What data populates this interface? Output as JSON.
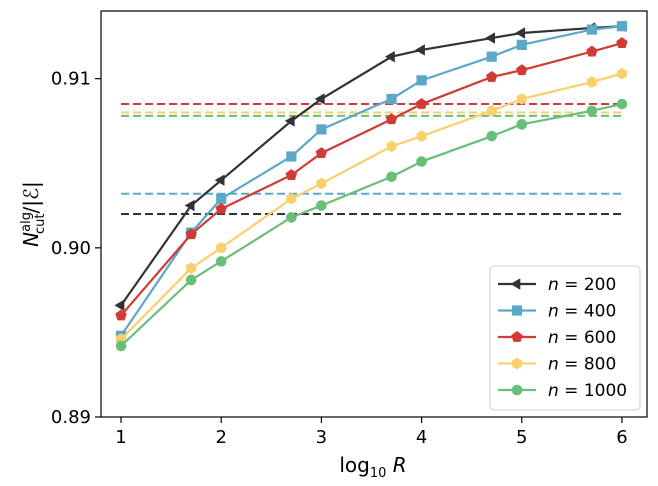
{
  "chart_data": {
    "type": "line",
    "xlabel": "log10 R",
    "ylabel": "N_cut^alg/|E|",
    "xlim": [
      0.8,
      6.25
    ],
    "ylim": [
      0.89,
      0.914
    ],
    "xticks": [
      "1",
      "2",
      "3",
      "4",
      "5",
      "6"
    ],
    "yticks": [
      "0.89",
      "0.90",
      "0.91"
    ],
    "legend_position": "bottom-right",
    "x": [
      1.0,
      1.7,
      2.0,
      2.7,
      3.0,
      3.7,
      4.0,
      4.7,
      5.0,
      5.7,
      6.0
    ],
    "series": [
      {
        "name": "n = 200",
        "n": "200",
        "color": "#333333",
        "marker": "triangle-left",
        "values": [
          0.8966,
          0.9025,
          0.904,
          0.9075,
          0.9088,
          0.9113,
          0.9117,
          0.9124,
          0.9127,
          0.913,
          0.9131
        ],
        "baseline": 0.902
      },
      {
        "name": "n = 400",
        "n": "400",
        "color": "#5ba8c8",
        "marker": "square",
        "values": [
          0.8948,
          0.9009,
          0.9029,
          0.9054,
          0.907,
          0.9088,
          0.9099,
          0.9113,
          0.912,
          0.9129,
          0.9131
        ],
        "baseline": 0.9032
      },
      {
        "name": "n = 600",
        "n": "600",
        "color": "#d13b35",
        "marker": "pentagon",
        "values": [
          0.896,
          0.9008,
          0.9023,
          0.9043,
          0.9056,
          0.9076,
          0.9085,
          0.9101,
          0.9105,
          0.9116,
          0.9121
        ],
        "baseline": 0.9085
      },
      {
        "name": "n = 800",
        "n": "800",
        "color": "#f9d06c",
        "marker": "hexagon",
        "values": [
          0.8946,
          0.8988,
          0.9,
          0.9029,
          0.9038,
          0.906,
          0.9066,
          0.9081,
          0.9088,
          0.9098,
          0.9103
        ],
        "baseline": 0.908
      },
      {
        "name": "n = 1000",
        "n": "1000",
        "color": "#6abf78",
        "marker": "circle",
        "values": [
          0.8942,
          0.8981,
          0.8992,
          0.9018,
          0.9025,
          0.9042,
          0.9051,
          0.9066,
          0.9073,
          0.9081,
          0.9085
        ],
        "baseline": 0.9078
      }
    ]
  }
}
